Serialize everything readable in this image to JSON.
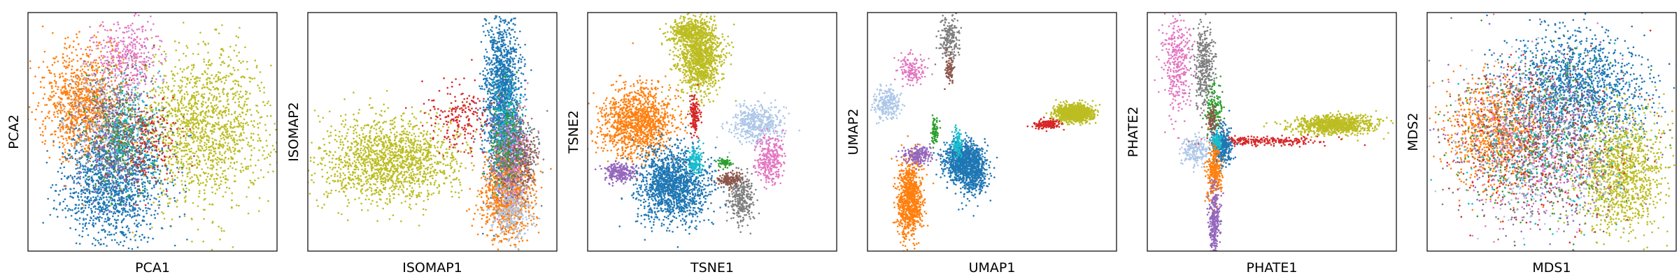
{
  "colors": {
    "tab_blue": "#1f77b4",
    "tab_orange": "#ff7f0e",
    "tab_green": "#2ca02c",
    "tab_red": "#d62728",
    "tab_purple": "#9467bd",
    "tab_brown": "#8c564b",
    "tab_pink": "#e377c2",
    "tab_gray": "#7f7f7f",
    "tab_olive": "#bcbd22",
    "tab_cyan": "#17becf",
    "tab_lightblue": "#aec7e8"
  },
  "chart_data": [
    {
      "type": "scatter",
      "method": "PCA",
      "xlabel": "PCA1",
      "ylabel": "PCA2",
      "ticks": false,
      "grid": false,
      "xlim": [
        0,
        1
      ],
      "ylim": [
        0,
        1
      ],
      "clusters": [
        {
          "color": "tab_olive",
          "x": 0.7,
          "y": 0.52,
          "sx": 0.14,
          "sy": 0.16,
          "n": 1500
        },
        {
          "color": "tab_blue",
          "x": 0.34,
          "y": 0.3,
          "sx": 0.1,
          "sy": 0.13,
          "n": 1500
        },
        {
          "color": "tab_orange",
          "x": 0.22,
          "y": 0.62,
          "sx": 0.08,
          "sy": 0.11,
          "n": 1000
        },
        {
          "color": "tab_pink",
          "x": 0.4,
          "y": 0.82,
          "sx": 0.06,
          "sy": 0.08,
          "n": 350
        },
        {
          "color": "tab_lightblue",
          "x": 0.32,
          "y": 0.55,
          "sx": 0.08,
          "sy": 0.13,
          "n": 300
        },
        {
          "color": "tab_gray",
          "x": 0.36,
          "y": 0.52,
          "sx": 0.08,
          "sy": 0.12,
          "n": 300
        },
        {
          "color": "tab_purple",
          "x": 0.34,
          "y": 0.5,
          "sx": 0.08,
          "sy": 0.14,
          "n": 200
        },
        {
          "color": "tab_brown",
          "x": 0.38,
          "y": 0.48,
          "sx": 0.07,
          "sy": 0.12,
          "n": 200
        },
        {
          "color": "tab_green",
          "x": 0.36,
          "y": 0.48,
          "sx": 0.07,
          "sy": 0.12,
          "n": 150
        },
        {
          "color": "tab_cyan",
          "x": 0.4,
          "y": 0.5,
          "sx": 0.06,
          "sy": 0.12,
          "n": 150
        },
        {
          "color": "tab_red",
          "x": 0.5,
          "y": 0.45,
          "sx": 0.06,
          "sy": 0.1,
          "n": 150
        }
      ]
    },
    {
      "type": "scatter",
      "method": "ISOMAP",
      "xlabel": "ISOMAP1",
      "ylabel": "ISOMAP2",
      "ticks": false,
      "grid": false,
      "xlim": [
        0,
        1
      ],
      "ylim": [
        0,
        1
      ],
      "clusters": [
        {
          "color": "tab_olive",
          "x": 0.33,
          "y": 0.38,
          "sx": 0.14,
          "sy": 0.09,
          "n": 1500
        },
        {
          "color": "tab_blue",
          "x": 0.78,
          "y": 0.65,
          "sx": 0.035,
          "sy": 0.17,
          "n": 1500
        },
        {
          "color": "tab_orange",
          "x": 0.8,
          "y": 0.24,
          "sx": 0.05,
          "sy": 0.09,
          "n": 1000
        },
        {
          "color": "tab_gray",
          "x": 0.83,
          "y": 0.4,
          "sx": 0.045,
          "sy": 0.09,
          "n": 400
        },
        {
          "color": "tab_lightblue",
          "x": 0.82,
          "y": 0.18,
          "sx": 0.04,
          "sy": 0.07,
          "n": 300
        },
        {
          "color": "tab_cyan",
          "x": 0.8,
          "y": 0.52,
          "sx": 0.03,
          "sy": 0.1,
          "n": 200
        },
        {
          "color": "tab_red",
          "x": 0.62,
          "y": 0.55,
          "sx": 0.06,
          "sy": 0.07,
          "n": 200
        },
        {
          "color": "tab_pink",
          "x": 0.82,
          "y": 0.42,
          "sx": 0.04,
          "sy": 0.1,
          "n": 200
        },
        {
          "color": "tab_purple",
          "x": 0.8,
          "y": 0.38,
          "sx": 0.04,
          "sy": 0.1,
          "n": 150
        },
        {
          "color": "tab_brown",
          "x": 0.85,
          "y": 0.4,
          "sx": 0.035,
          "sy": 0.08,
          "n": 150
        },
        {
          "color": "tab_green",
          "x": 0.79,
          "y": 0.45,
          "sx": 0.035,
          "sy": 0.1,
          "n": 150
        }
      ]
    },
    {
      "type": "scatter",
      "method": "TSNE",
      "xlabel": "TSNE1",
      "ylabel": "TSNE2",
      "ticks": false,
      "grid": false,
      "xlim": [
        0,
        1
      ],
      "ylim": [
        0,
        1
      ],
      "clusters": [
        {
          "color": "tab_olive",
          "x": 0.45,
          "y": 0.82,
          "sx": 0.045,
          "sy": 0.08,
          "n": 1200
        },
        {
          "color": "tab_olive",
          "x": 0.4,
          "y": 0.92,
          "sx": 0.04,
          "sy": 0.025,
          "n": 300
        },
        {
          "color": "tab_orange",
          "x": 0.2,
          "y": 0.54,
          "sx": 0.075,
          "sy": 0.075,
          "n": 1200
        },
        {
          "color": "tab_blue",
          "x": 0.34,
          "y": 0.28,
          "sx": 0.07,
          "sy": 0.08,
          "n": 1500
        },
        {
          "color": "tab_lightblue",
          "x": 0.68,
          "y": 0.54,
          "sx": 0.055,
          "sy": 0.04,
          "n": 450
        },
        {
          "color": "tab_pink",
          "x": 0.73,
          "y": 0.38,
          "sx": 0.025,
          "sy": 0.05,
          "n": 300
        },
        {
          "color": "tab_gray",
          "x": 0.62,
          "y": 0.22,
          "sx": 0.025,
          "sy": 0.05,
          "n": 300
        },
        {
          "color": "tab_brown",
          "x": 0.57,
          "y": 0.3,
          "sx": 0.025,
          "sy": 0.015,
          "n": 150
        },
        {
          "color": "tab_purple",
          "x": 0.13,
          "y": 0.33,
          "sx": 0.03,
          "sy": 0.02,
          "n": 250
        },
        {
          "color": "tab_red",
          "x": 0.43,
          "y": 0.57,
          "sx": 0.01,
          "sy": 0.04,
          "n": 150
        },
        {
          "color": "tab_cyan",
          "x": 0.43,
          "y": 0.38,
          "sx": 0.015,
          "sy": 0.03,
          "n": 150
        },
        {
          "color": "tab_green",
          "x": 0.55,
          "y": 0.37,
          "sx": 0.012,
          "sy": 0.01,
          "n": 60
        }
      ]
    },
    {
      "type": "scatter",
      "method": "UMAP",
      "xlabel": "UMAP1",
      "ylabel": "UMAP2",
      "ticks": false,
      "grid": false,
      "xlim": [
        0,
        1
      ],
      "ylim": [
        0,
        1
      ],
      "clusters": [
        {
          "color": "tab_olive",
          "x": 0.83,
          "y": 0.58,
          "sx": 0.035,
          "sy": 0.018,
          "n": 1200
        },
        {
          "color": "tab_red",
          "x": 0.72,
          "y": 0.53,
          "sx": 0.025,
          "sy": 0.01,
          "n": 150
        },
        {
          "color": "tab_blue",
          "x": 0.38,
          "y": 0.38,
          "sx": 0.04,
          "sy": 0.04,
          "n": 800
        },
        {
          "color": "tab_blue",
          "x": 0.42,
          "y": 0.33,
          "sx": 0.03,
          "sy": 0.05,
          "n": 500
        },
        {
          "color": "tab_orange",
          "x": 0.17,
          "y": 0.22,
          "sx": 0.025,
          "sy": 0.08,
          "n": 900
        },
        {
          "color": "tab_purple",
          "x": 0.2,
          "y": 0.4,
          "sx": 0.03,
          "sy": 0.02,
          "n": 200
        },
        {
          "color": "tab_lightblue",
          "x": 0.08,
          "y": 0.62,
          "sx": 0.025,
          "sy": 0.03,
          "n": 250
        },
        {
          "color": "tab_pink",
          "x": 0.18,
          "y": 0.76,
          "sx": 0.03,
          "sy": 0.03,
          "n": 150
        },
        {
          "color": "tab_gray",
          "x": 0.33,
          "y": 0.9,
          "sx": 0.02,
          "sy": 0.05,
          "n": 200
        },
        {
          "color": "tab_brown",
          "x": 0.33,
          "y": 0.76,
          "sx": 0.008,
          "sy": 0.03,
          "n": 80
        },
        {
          "color": "tab_cyan",
          "x": 0.36,
          "y": 0.45,
          "sx": 0.01,
          "sy": 0.03,
          "n": 100
        },
        {
          "color": "tab_green",
          "x": 0.27,
          "y": 0.5,
          "sx": 0.008,
          "sy": 0.03,
          "n": 80
        }
      ]
    },
    {
      "type": "scatter",
      "method": "PHATE",
      "xlabel": "PHATE1",
      "ylabel": "PHATE2",
      "ticks": false,
      "grid": false,
      "xlim": [
        0,
        1
      ],
      "ylim": [
        0,
        1
      ],
      "clusters": [
        {
          "color": "tab_olive",
          "x": 0.75,
          "y": 0.53,
          "sx": 0.08,
          "sy": 0.02,
          "n": 900
        },
        {
          "color": "tab_red",
          "x": 0.47,
          "y": 0.46,
          "sx": 0.12,
          "sy": 0.01,
          "n": 250
        },
        {
          "color": "tab_pink",
          "x": 0.12,
          "y": 0.8,
          "sx": 0.03,
          "sy": 0.11,
          "n": 350
        },
        {
          "color": "tab_gray",
          "x": 0.23,
          "y": 0.78,
          "sx": 0.02,
          "sy": 0.09,
          "n": 350
        },
        {
          "color": "tab_green",
          "x": 0.27,
          "y": 0.6,
          "sx": 0.015,
          "sy": 0.05,
          "n": 150
        },
        {
          "color": "tab_blue",
          "x": 0.3,
          "y": 0.44,
          "sx": 0.02,
          "sy": 0.04,
          "n": 400
        },
        {
          "color": "tab_lightblue",
          "x": 0.2,
          "y": 0.42,
          "sx": 0.03,
          "sy": 0.03,
          "n": 200
        },
        {
          "color": "tab_orange",
          "x": 0.27,
          "y": 0.33,
          "sx": 0.015,
          "sy": 0.06,
          "n": 300
        },
        {
          "color": "tab_purple",
          "x": 0.27,
          "y": 0.12,
          "sx": 0.012,
          "sy": 0.07,
          "n": 300
        },
        {
          "color": "tab_cyan",
          "x": 0.28,
          "y": 0.46,
          "sx": 0.01,
          "sy": 0.02,
          "n": 80
        },
        {
          "color": "tab_brown",
          "x": 0.26,
          "y": 0.55,
          "sx": 0.01,
          "sy": 0.03,
          "n": 80
        }
      ]
    },
    {
      "type": "scatter",
      "method": "MDS",
      "xlabel": "MDS1",
      "ylabel": "MDS2",
      "ticks": false,
      "grid": false,
      "xlim": [
        0,
        1
      ],
      "ylim": [
        0,
        1
      ],
      "clusters": [
        {
          "color": "tab_blue",
          "x": 0.6,
          "y": 0.68,
          "sx": 0.14,
          "sy": 0.12,
          "n": 1400
        },
        {
          "color": "tab_orange",
          "x": 0.28,
          "y": 0.5,
          "sx": 0.1,
          "sy": 0.11,
          "n": 900
        },
        {
          "color": "tab_olive",
          "x": 0.78,
          "y": 0.33,
          "sx": 0.09,
          "sy": 0.12,
          "n": 1200
        },
        {
          "color": "tab_gray",
          "x": 0.45,
          "y": 0.45,
          "sx": 0.17,
          "sy": 0.17,
          "n": 400
        },
        {
          "color": "tab_pink",
          "x": 0.45,
          "y": 0.45,
          "sx": 0.17,
          "sy": 0.17,
          "n": 350
        },
        {
          "color": "tab_lightblue",
          "x": 0.45,
          "y": 0.45,
          "sx": 0.17,
          "sy": 0.17,
          "n": 350
        },
        {
          "color": "tab_purple",
          "x": 0.45,
          "y": 0.45,
          "sx": 0.17,
          "sy": 0.17,
          "n": 300
        },
        {
          "color": "tab_green",
          "x": 0.45,
          "y": 0.45,
          "sx": 0.17,
          "sy": 0.17,
          "n": 250
        },
        {
          "color": "tab_red",
          "x": 0.45,
          "y": 0.45,
          "sx": 0.17,
          "sy": 0.17,
          "n": 250
        },
        {
          "color": "tab_brown",
          "x": 0.45,
          "y": 0.45,
          "sx": 0.17,
          "sy": 0.17,
          "n": 250
        },
        {
          "color": "tab_cyan",
          "x": 0.45,
          "y": 0.45,
          "sx": 0.17,
          "sy": 0.17,
          "n": 250
        }
      ]
    }
  ]
}
